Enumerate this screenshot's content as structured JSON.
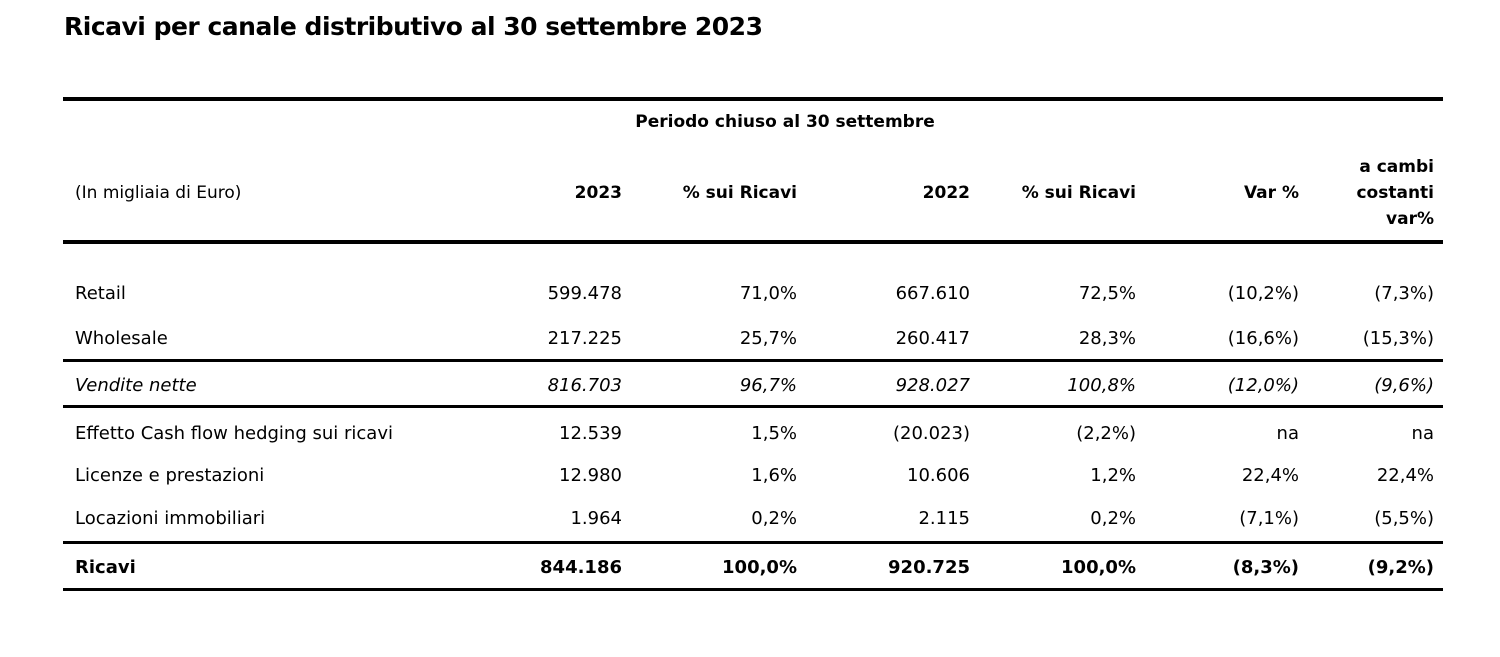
{
  "title": "Ricavi per canale distributivo al 30 settembre 2023",
  "header": {
    "period": "Periodo chiuso al 30 settembre",
    "unit": "(In migliaia di Euro)",
    "col_2023": "2023",
    "col_pct_2023": "% sui Ricavi",
    "col_2022": "2022",
    "col_pct_2022": "% sui Ricavi",
    "col_var": "Var %",
    "col_cambi_1": "a cambi",
    "col_cambi_2": "costanti",
    "col_cambi_3": "var%"
  },
  "rows": [
    {
      "label": "Retail",
      "v2023": "599.478",
      "p2023": "71,0%",
      "v2022": "667.610",
      "p2022": "72,5%",
      "var": "(10,2%)",
      "cambi": "(7,3%)"
    },
    {
      "label": "Wholesale",
      "v2023": "217.225",
      "p2023": "25,7%",
      "v2022": "260.417",
      "p2022": "28,3%",
      "var": "(16,6%)",
      "cambi": "(15,3%)"
    },
    {
      "label": "Vendite nette",
      "v2023": "816.703",
      "p2023": "96,7%",
      "v2022": "928.027",
      "p2022": "100,8%",
      "var": "(12,0%)",
      "cambi": "(9,6%)"
    },
    {
      "label": "Effetto Cash flow hedging sui ricavi",
      "v2023": "12.539",
      "p2023": "1,5%",
      "v2022": "(20.023)",
      "p2022": "(2,2%)",
      "var": "na",
      "cambi": "na"
    },
    {
      "label": "Licenze e prestazioni",
      "v2023": "12.980",
      "p2023": "1,6%",
      "v2022": "10.606",
      "p2022": "1,2%",
      "var": "22,4%",
      "cambi": "22,4%"
    },
    {
      "label": "Locazioni immobiliari",
      "v2023": "1.964",
      "p2023": "0,2%",
      "v2022": "2.115",
      "p2022": "0,2%",
      "var": "(7,1%)",
      "cambi": "(5,5%)"
    },
    {
      "label": "Ricavi",
      "v2023": "844.186",
      "p2023": "100,0%",
      "v2022": "920.725",
      "p2022": "100,0%",
      "var": "(8,3%)",
      "cambi": "(9,2%)"
    }
  ]
}
